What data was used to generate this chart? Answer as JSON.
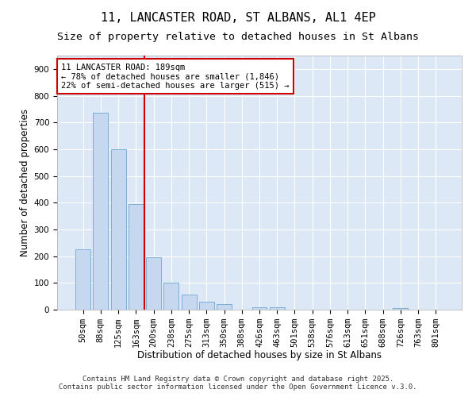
{
  "title_line1": "11, LANCASTER ROAD, ST ALBANS, AL1 4EP",
  "title_line2": "Size of property relative to detached houses in St Albans",
  "xlabel": "Distribution of detached houses by size in St Albans",
  "ylabel": "Number of detached properties",
  "categories": [
    "50sqm",
    "88sqm",
    "125sqm",
    "163sqm",
    "200sqm",
    "238sqm",
    "275sqm",
    "313sqm",
    "350sqm",
    "388sqm",
    "426sqm",
    "463sqm",
    "501sqm",
    "538sqm",
    "576sqm",
    "613sqm",
    "651sqm",
    "688sqm",
    "726sqm",
    "763sqm",
    "801sqm"
  ],
  "values": [
    225,
    735,
    600,
    395,
    195,
    100,
    55,
    30,
    20,
    0,
    10,
    10,
    0,
    0,
    0,
    0,
    0,
    0,
    5,
    0,
    0
  ],
  "bar_color": "#c5d8f0",
  "bar_edge_color": "#7bafd4",
  "vline_color": "#cc0000",
  "vline_x": 3.5,
  "annotation_text": "11 LANCASTER ROAD: 189sqm\n← 78% of detached houses are smaller (1,846)\n22% of semi-detached houses are larger (515) →",
  "annotation_fontsize": 7.5,
  "plot_bg_color": "#dce8f5",
  "fig_bg_color": "#ffffff",
  "grid_color": "#ffffff",
  "footer_text": "Contains HM Land Registry data © Crown copyright and database right 2025.\nContains public sector information licensed under the Open Government Licence v.3.0.",
  "ylim": [
    0,
    950
  ],
  "yticks": [
    0,
    100,
    200,
    300,
    400,
    500,
    600,
    700,
    800,
    900
  ],
  "title1_fontsize": 11,
  "title2_fontsize": 9.5,
  "xlabel_fontsize": 8.5,
  "ylabel_fontsize": 8.5,
  "tick_fontsize": 7.5,
  "footer_fontsize": 6.5
}
